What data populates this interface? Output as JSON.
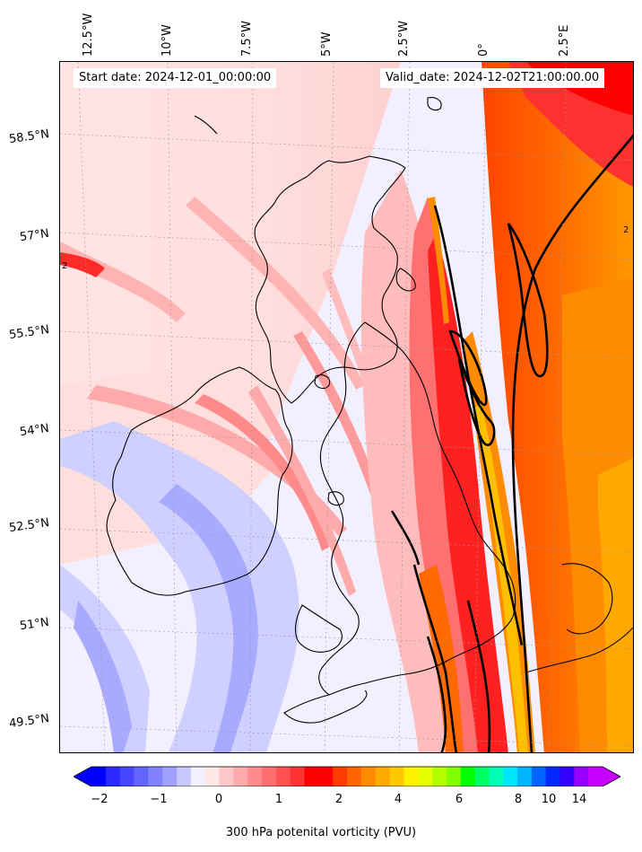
{
  "header": {
    "start_date": "Start date: 2024-12-01_00:00:00",
    "valid_date": "Valid_date: 2024-12-02T21:00:00.00"
  },
  "map": {
    "region": "British Isles",
    "projection": "conic",
    "gridlines": true,
    "contour_label": "2",
    "lon_labels": [
      "12.5°W",
      "10°W",
      "7.5°W",
      "5°W",
      "2.5°W",
      "0°",
      "2.5°E"
    ],
    "lat_labels": [
      "58.5°N",
      "57°N",
      "55.5°N",
      "54°N",
      "52.5°N",
      "51°N",
      "49.5°N"
    ],
    "colors": {
      "background": "#f0f0ff",
      "light_blue": "#cfd0ff",
      "mid_blue": "#9a9cff",
      "light_pink": "#ffe0e0",
      "pink": "#ffaaaa",
      "red": "#ff5555",
      "bright_red": "#ff1a1a",
      "orange_red": "#ff4400",
      "orange": "#ff8c00",
      "amber": "#ffb000",
      "yellow": "#ffd200",
      "coast": "#000000",
      "contour": "#000000"
    }
  },
  "colorbar": {
    "label": "300 hPa potenital vorticity (PVU)",
    "ticks": [
      "-2",
      "−1",
      "0",
      "1",
      "2",
      "4",
      "6",
      "8",
      "10",
      "14"
    ],
    "tick_display": [
      "−2",
      "−1",
      "0",
      "1",
      "2",
      "4",
      "6",
      "8",
      "10",
      "14"
    ],
    "colors": [
      "#0000ff",
      "#2828ff",
      "#4646ff",
      "#6464ff",
      "#8282ff",
      "#a0a0ff",
      "#c8c8ff",
      "#f0f0ff",
      "#ffe8e8",
      "#ffc8c8",
      "#ffaaaa",
      "#ff8c8c",
      "#ff6e6e",
      "#ff5050",
      "#ff3232",
      "#ff0000",
      "#ff0000",
      "#ff3c00",
      "#ff6400",
      "#ff8c00",
      "#ffaa00",
      "#ffc800",
      "#fff000",
      "#e6ff00",
      "#b4ff00",
      "#82ff00",
      "#00ff00",
      "#00ff64",
      "#00ffb4",
      "#00e6ff",
      "#00b4ff",
      "#0064ff",
      "#0028ff",
      "#3200ff",
      "#9600ff",
      "#c800ff"
    ],
    "extend_low_color": "#0000ff",
    "extend_high_color": "#c800ff"
  }
}
